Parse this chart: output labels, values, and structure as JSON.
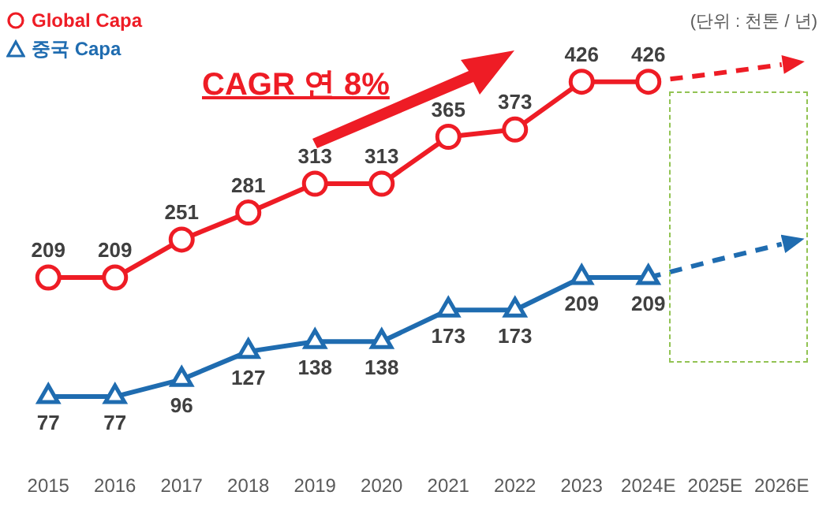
{
  "chart_data": {
    "type": "line",
    "categories": [
      "2015",
      "2016",
      "2017",
      "2018",
      "2019",
      "2020",
      "2021",
      "2022",
      "2023",
      "2024E",
      "2025E",
      "2026E"
    ],
    "tick_labels": "x",
    "grid": false,
    "legend": "top left",
    "series": [
      {
        "name": "Global Capa",
        "color": "#ee1c25",
        "marker": "circle",
        "values": [
          209,
          209,
          251,
          281,
          313,
          313,
          365,
          373,
          426,
          426,
          null,
          null
        ],
        "value_labels": [
          "209",
          "209",
          "251",
          "281",
          "313",
          "313",
          "365",
          "373",
          "426",
          "426",
          null,
          null
        ]
      },
      {
        "name": "중국 Capa",
        "color": "#1f6cb0",
        "marker": "triangle",
        "values": [
          77,
          77,
          96,
          127,
          138,
          138,
          173,
          173,
          209,
          209,
          null,
          null
        ],
        "value_labels": [
          "77",
          "77",
          "96",
          "127",
          "138",
          "138",
          "173",
          "173",
          "209",
          "209",
          null,
          null
        ]
      },
      {
        "color": "#ee1c25",
        "marker": "none",
        "line_style": "dashed",
        "values": [
          null,
          null,
          null,
          null,
          null,
          null,
          null,
          null,
          null,
          426,
          435,
          445
        ]
      },
      {
        "color": "#1f6cb0",
        "marker": "none",
        "line_style": "dashed",
        "values": [
          null,
          null,
          null,
          null,
          null,
          null,
          null,
          null,
          null,
          209,
          228,
          246
        ]
      }
    ],
    "annotations": [
      "CAGR 연 8%",
      "(단위 : 천톤 / 년)"
    ]
  }
}
